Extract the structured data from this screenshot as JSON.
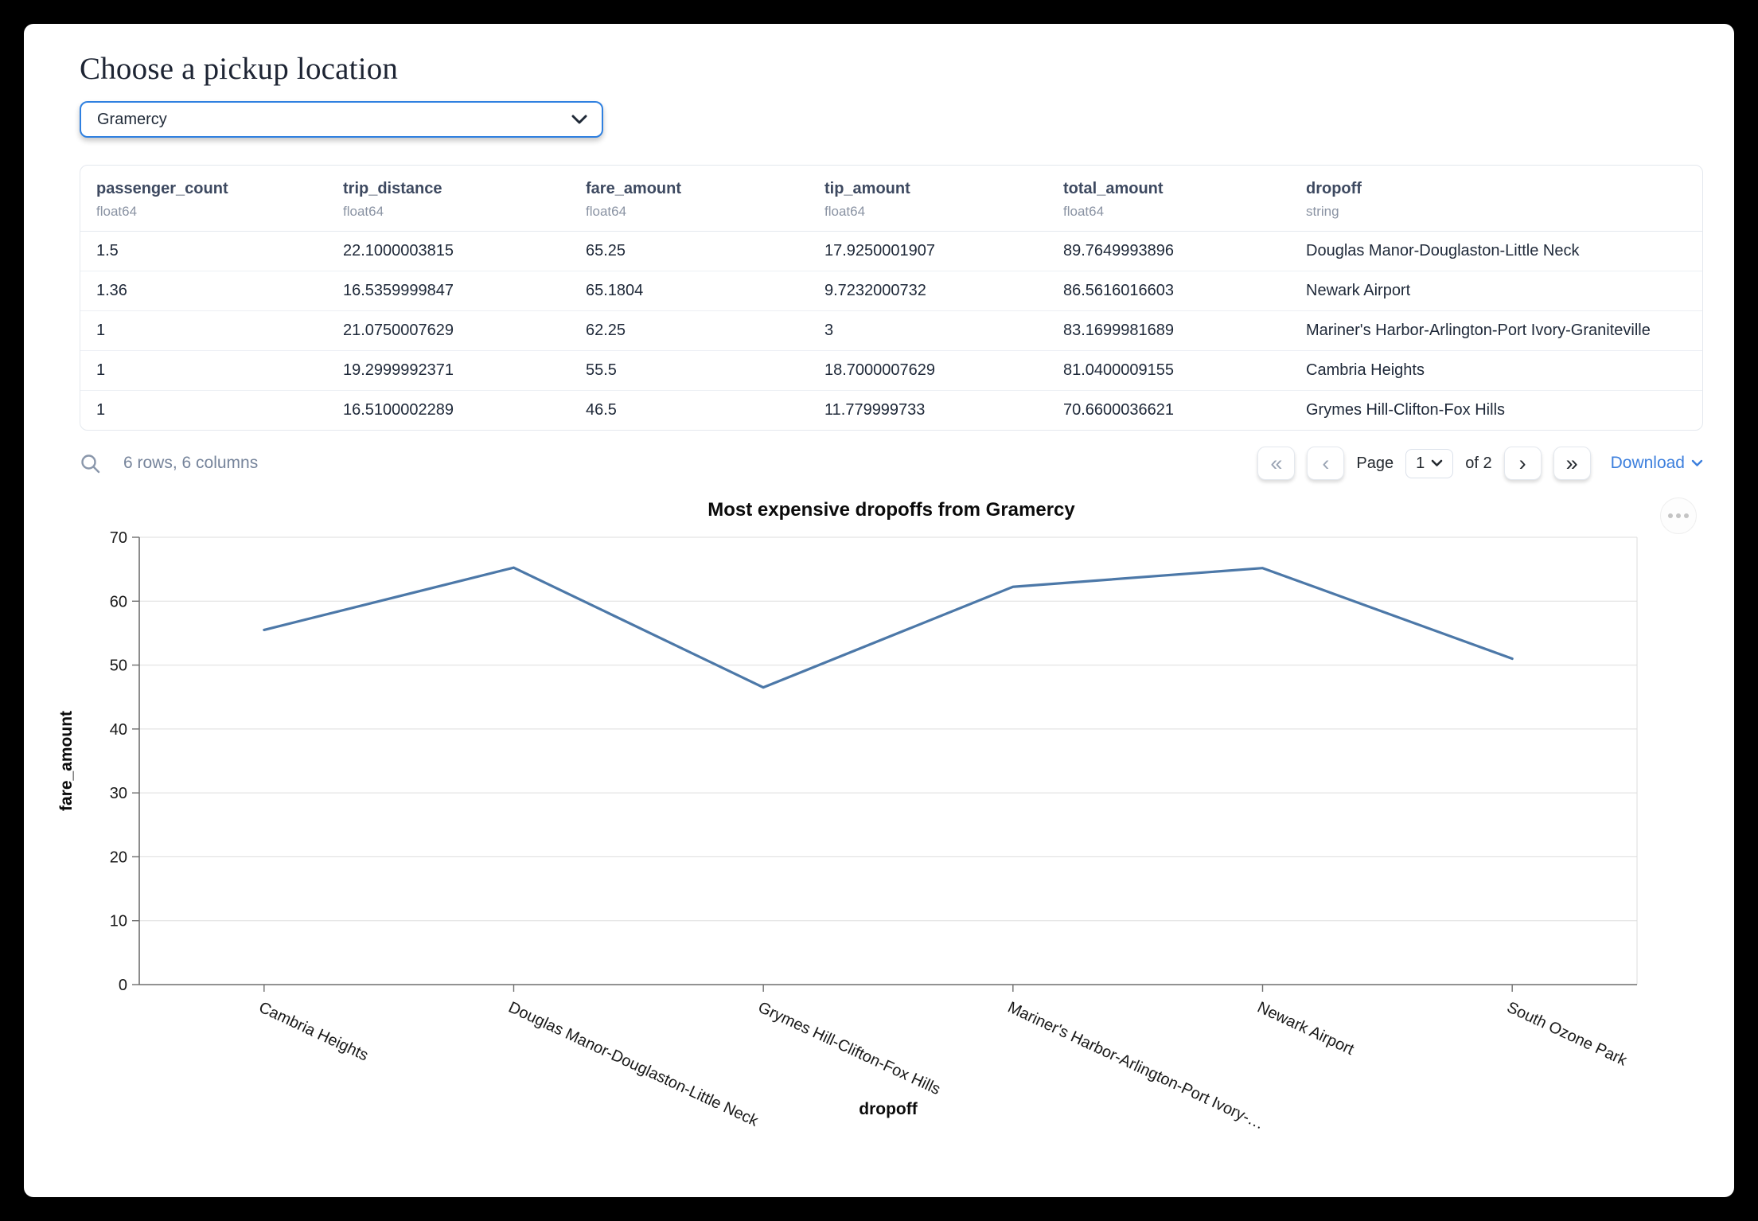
{
  "page": {
    "title": "Choose a pickup location"
  },
  "pickup_select": {
    "value": "Gramercy"
  },
  "table": {
    "columns": [
      {
        "name": "passenger_count",
        "type": "float64"
      },
      {
        "name": "trip_distance",
        "type": "float64"
      },
      {
        "name": "fare_amount",
        "type": "float64"
      },
      {
        "name": "tip_amount",
        "type": "float64"
      },
      {
        "name": "total_amount",
        "type": "float64"
      },
      {
        "name": "dropoff",
        "type": "string"
      }
    ],
    "rows": [
      [
        "1.5",
        "22.1000003815",
        "65.25",
        "17.9250001907",
        "89.7649993896",
        "Douglas Manor-Douglaston-Little Neck"
      ],
      [
        "1.36",
        "16.5359999847",
        "65.1804",
        "9.7232000732",
        "86.5616016603",
        "Newark Airport"
      ],
      [
        "1",
        "21.0750007629",
        "62.25",
        "3",
        "83.1699981689",
        "Mariner's Harbor-Arlington-Port Ivory-Graniteville"
      ],
      [
        "1",
        "19.2999992371",
        "55.5",
        "18.7000007629",
        "81.0400009155",
        "Cambria Heights"
      ],
      [
        "1",
        "16.5100002289",
        "46.5",
        "11.779999733",
        "70.6600036621",
        "Grymes Hill-Clifton-Fox Hills"
      ]
    ],
    "summary": "6 rows, 6 columns",
    "pagination": {
      "page_label": "Page",
      "current_page": "1",
      "of_label": "of 2",
      "download_label": "Download",
      "icons": {
        "first": "«",
        "prev": "‹",
        "next": "›",
        "last": "»"
      }
    }
  },
  "chart_data": {
    "type": "line",
    "title": "Most expensive dropoffs from Gramercy",
    "xlabel": "dropoff",
    "ylabel": "fare_amount",
    "categories": [
      "Cambria Heights",
      "Douglas Manor-Douglaston-Little Neck",
      "Grymes Hill-Clifton-Fox Hills",
      "Mariner's Harbor-Arlington-Port Ivory-…",
      "Newark Airport",
      "South Ozone Park"
    ],
    "values": [
      55.5,
      65.25,
      46.5,
      62.25,
      65.1804,
      51
    ],
    "ylim": [
      0,
      70
    ],
    "yticks": [
      0,
      10,
      20,
      30,
      40,
      50,
      60,
      70
    ],
    "grid": true,
    "legend_position": "none",
    "line_color": "#4c78a8"
  },
  "colors": {
    "accent_blue": "#2f80e0",
    "link_blue": "#3c7fdd",
    "line_blue": "#4c78a8",
    "header_text": "#3d4960",
    "muted_text": "#8a93a3"
  }
}
